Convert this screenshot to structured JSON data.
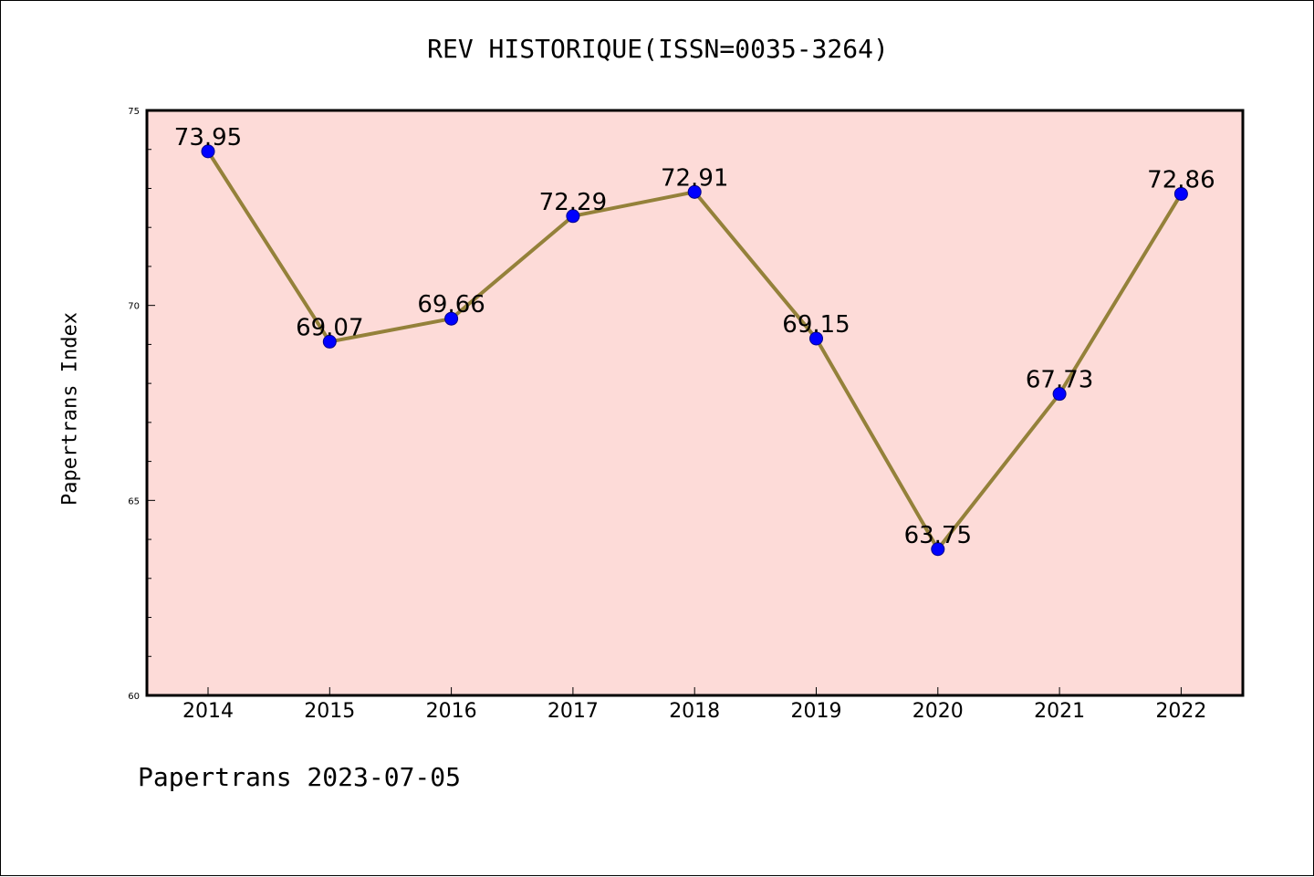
{
  "chart_data": {
    "type": "line",
    "title": "REV HISTORIQUE(ISSN=0035-3264)",
    "xlabel": "",
    "ylabel": "Papertrans Index",
    "categories": [
      "2014",
      "2015",
      "2016",
      "2017",
      "2018",
      "2019",
      "2020",
      "2021",
      "2022"
    ],
    "values": [
      73.95,
      69.07,
      69.66,
      72.29,
      72.91,
      69.15,
      63.75,
      67.73,
      72.86
    ],
    "data_labels": [
      "73.95",
      "69.07",
      "69.66",
      "72.29",
      "72.91",
      "69.15",
      "63.75",
      "67.73",
      "72.86"
    ],
    "y_ticks": [
      "60",
      "65",
      "70",
      "75"
    ],
    "ylim": [
      60,
      75
    ],
    "grid": false,
    "legend": "none",
    "colors": {
      "plot_background": "#fddbd8",
      "line": "#94813a",
      "marker_fill": "#0000ff",
      "marker_edge": "#00008b"
    }
  },
  "footer": {
    "note": "Papertrans 2023-07-05"
  }
}
